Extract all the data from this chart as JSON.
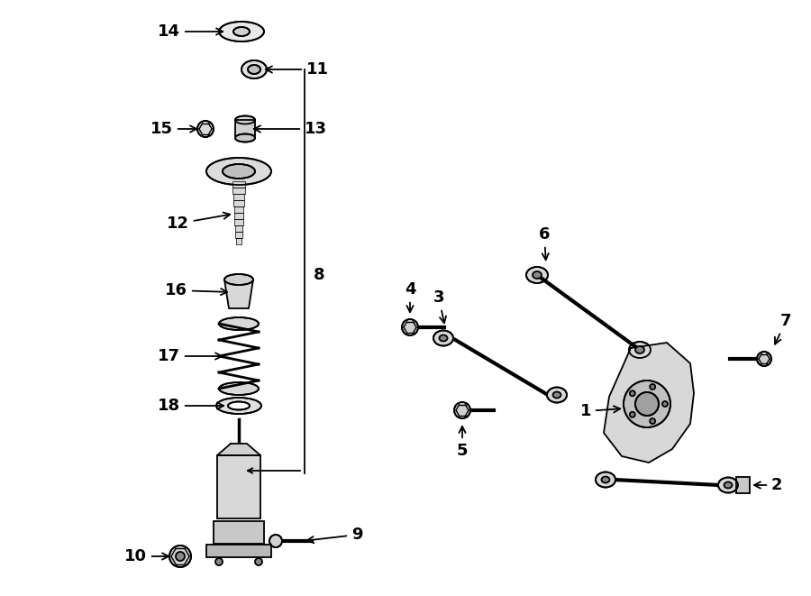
{
  "bg_color": "#ffffff",
  "line_color": "#000000",
  "label_fontsize": 13,
  "fig_width": 9.0,
  "fig_height": 6.61,
  "dpi": 100
}
